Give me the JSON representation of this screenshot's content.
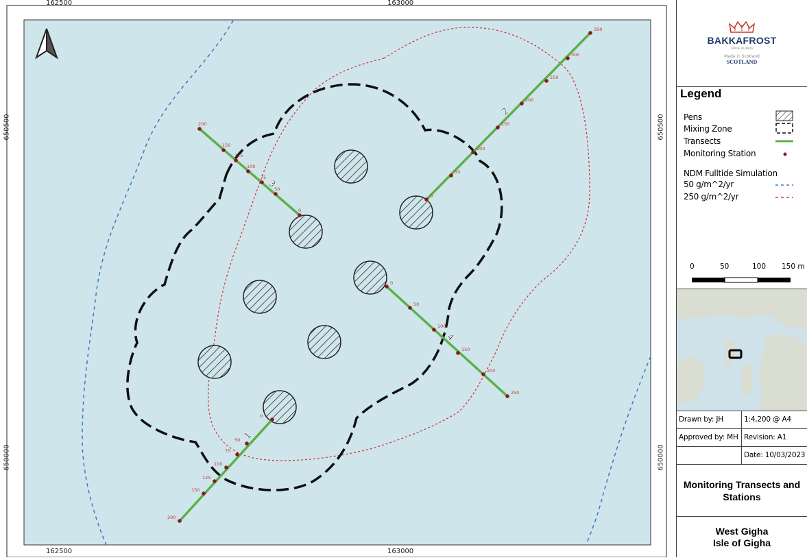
{
  "grid_labels": {
    "top_left": "162500",
    "top_right": "163000",
    "bottom_left": "162500",
    "bottom_right": "163000",
    "left_upper": "650500",
    "left_lower": "650000",
    "right_upper": "650500",
    "right_lower": "650000"
  },
  "colors": {
    "sea": "#cfe5ec",
    "transect": "#5cb04a",
    "station": "#8b1a1a",
    "label_red": "#c0392b",
    "contour_50": "#3b78c2",
    "contour_250": "#d03a3a",
    "pens": "#222222",
    "mixing_zone": "#111111"
  },
  "transects": [
    {
      "id": "1",
      "stations": [
        "0",
        "50",
        "75",
        "100",
        "125",
        "150",
        "200"
      ]
    },
    {
      "id": "2",
      "stations": [
        "0",
        "50",
        "100",
        "150",
        "200",
        "250",
        "300",
        "350"
      ]
    },
    {
      "id": "3",
      "stations": [
        "0",
        "50",
        "75",
        "100",
        "125",
        "150",
        "200"
      ]
    },
    {
      "id": "4",
      "stations": [
        "0",
        "50",
        "100",
        "150",
        "200",
        "250"
      ]
    }
  ],
  "branding": {
    "name": "BAKKAFROST",
    "subline": "FAROE ISLANDS",
    "made": "Made in Scotland",
    "scotland": "SCOTLAND"
  },
  "legend": {
    "title": "Legend",
    "pens": "Pens",
    "mixing_zone": "Mixing Zone",
    "transects": "Transects",
    "monitoring_station": "Monitoring Station",
    "ndm_title": "NDM Fulltide Simulation",
    "ndm_50": "50 g/m^2/yr",
    "ndm_250": "250 g/m^2/yr"
  },
  "scale_bar": {
    "labels": [
      "0",
      "50",
      "100",
      "150 m"
    ]
  },
  "info": {
    "drawn_by": "Drawn by: JH",
    "scale": "1:4,200  @ A4",
    "approved_by": "Approved by: MH",
    "revision": "Revision: A1",
    "date": "Date: 10/03/2023"
  },
  "title": "Monitoring Transects and Stations",
  "site": {
    "line1": "West Gigha",
    "line2": "Isle of Gigha"
  },
  "north_arrow": "north-arrow-icon"
}
